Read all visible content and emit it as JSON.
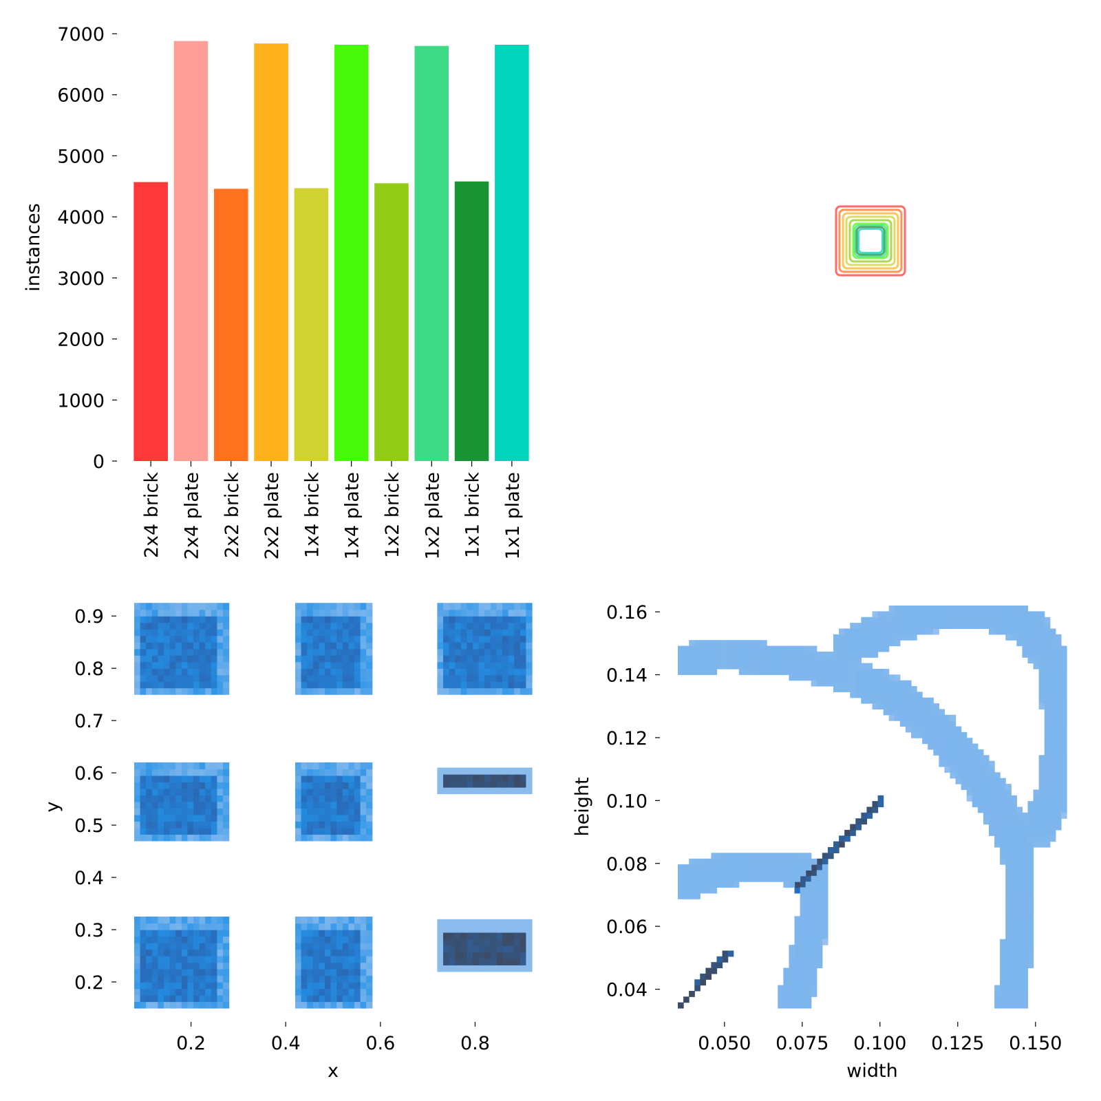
{
  "chart_data": [
    {
      "type": "bar",
      "categories": [
        "2x4 brick",
        "2x4 plate",
        "2x2 brick",
        "2x2 plate",
        "1x4 brick",
        "1x4 plate",
        "1x2 brick",
        "1x2 plate",
        "1x1 brick",
        "1x1 plate"
      ],
      "values": [
        4570,
        6880,
        4460,
        6840,
        4470,
        6820,
        4550,
        6800,
        4580,
        6820
      ],
      "colors": [
        "#ff3838",
        "#ff9d97",
        "#ff701f",
        "#ffb21d",
        "#cfd231",
        "#48f90a",
        "#92cc17",
        "#3ddb86",
        "#1a9334",
        "#00d4bb"
      ],
      "ylabel": "instances",
      "ylim": [
        0,
        7000
      ],
      "yticks": [
        "0",
        "1000",
        "2000",
        "3000",
        "4000",
        "5000",
        "6000",
        "7000"
      ]
    },
    {
      "type": "other",
      "description_free": true,
      "box_sizes": [
        {
          "w": 0.1,
          "h": 0.1,
          "color": "#ff3838"
        },
        {
          "w": 0.09,
          "h": 0.09,
          "color": "#ff701f"
        },
        {
          "w": 0.08,
          "h": 0.08,
          "color": "#ffb21d"
        },
        {
          "w": 0.07,
          "h": 0.07,
          "color": "#cfd231"
        },
        {
          "w": 0.06,
          "h": 0.06,
          "color": "#92cc17"
        },
        {
          "w": 0.05,
          "h": 0.05,
          "color": "#48f90a"
        },
        {
          "w": 0.045,
          "h": 0.045,
          "color": "#3ddb86"
        },
        {
          "w": 0.04,
          "h": 0.04,
          "color": "#1a9334"
        },
        {
          "w": 0.035,
          "h": 0.035,
          "color": "#00d4bb"
        }
      ]
    },
    {
      "type": "heatmap",
      "xlabel": "x",
      "ylabel": "y",
      "xlim": [
        0.08,
        0.92
      ],
      "ylim": [
        0.15,
        0.92
      ],
      "xticks": [
        "0.2",
        "0.4",
        "0.6",
        "0.8"
      ],
      "yticks": [
        "0.2",
        "0.3",
        "0.4",
        "0.5",
        "0.6",
        "0.7",
        "0.8",
        "0.9"
      ],
      "clusters": [
        {
          "x": [
            0.08,
            0.28
          ],
          "y": [
            0.75,
            0.92
          ],
          "density": "medium"
        },
        {
          "x": [
            0.42,
            0.58
          ],
          "y": [
            0.75,
            0.92
          ],
          "density": "medium"
        },
        {
          "x": [
            0.72,
            0.92
          ],
          "y": [
            0.75,
            0.92
          ],
          "density": "medium"
        },
        {
          "x": [
            0.08,
            0.28
          ],
          "y": [
            0.47,
            0.61
          ],
          "density": "medium"
        },
        {
          "x": [
            0.42,
            0.58
          ],
          "y": [
            0.47,
            0.61
          ],
          "density": "medium"
        },
        {
          "x": [
            0.72,
            0.92
          ],
          "y": [
            0.56,
            0.61
          ],
          "density": "high"
        },
        {
          "x": [
            0.08,
            0.28
          ],
          "y": [
            0.15,
            0.32
          ],
          "density": "medium"
        },
        {
          "x": [
            0.42,
            0.58
          ],
          "y": [
            0.15,
            0.32
          ],
          "density": "medium"
        },
        {
          "x": [
            0.72,
            0.92
          ],
          "y": [
            0.22,
            0.32
          ],
          "density": "high"
        }
      ]
    },
    {
      "type": "heatmap",
      "xlabel": "width",
      "ylabel": "height",
      "xlim": [
        0.035,
        0.16
      ],
      "ylim": [
        0.034,
        0.162
      ],
      "xticks": [
        "0.050",
        "0.075",
        "0.100",
        "0.125",
        "0.150"
      ],
      "yticks": [
        "0.04",
        "0.06",
        "0.08",
        "0.10",
        "0.12",
        "0.14",
        "0.16"
      ],
      "bands": [
        {
          "points": [
            [
              0.035,
              0.034
            ],
            [
              0.052,
              0.052
            ]
          ],
          "density": "high"
        },
        {
          "points": [
            [
              0.073,
              0.072
            ],
            [
              0.101,
              0.101
            ]
          ],
          "density": "high"
        },
        {
          "points": [
            [
              0.035,
              0.073
            ],
            [
              0.045,
              0.077
            ],
            [
              0.055,
              0.079
            ],
            [
              0.073,
              0.078
            ],
            [
              0.078,
              0.076
            ],
            [
              0.078,
              0.06
            ],
            [
              0.075,
              0.045
            ],
            [
              0.072,
              0.035
            ]
          ],
          "density": "low"
        },
        {
          "points": [
            [
              0.035,
              0.145
            ],
            [
              0.05,
              0.146
            ],
            [
              0.07,
              0.145
            ],
            [
              0.09,
              0.14
            ],
            [
              0.105,
              0.133
            ],
            [
              0.118,
              0.123
            ],
            [
              0.128,
              0.112
            ],
            [
              0.137,
              0.1
            ],
            [
              0.142,
              0.09
            ],
            [
              0.145,
              0.08
            ],
            [
              0.145,
              0.06
            ],
            [
              0.143,
              0.045
            ],
            [
              0.142,
              0.035
            ]
          ],
          "density": "low"
        },
        {
          "points": [
            [
              0.09,
              0.149
            ],
            [
              0.105,
              0.156
            ],
            [
              0.12,
              0.16
            ],
            [
              0.135,
              0.16
            ],
            [
              0.148,
              0.155
            ],
            [
              0.155,
              0.145
            ],
            [
              0.157,
              0.13
            ],
            [
              0.157,
              0.115
            ],
            [
              0.155,
              0.1
            ],
            [
              0.15,
              0.09
            ]
          ],
          "density": "low"
        }
      ]
    }
  ]
}
